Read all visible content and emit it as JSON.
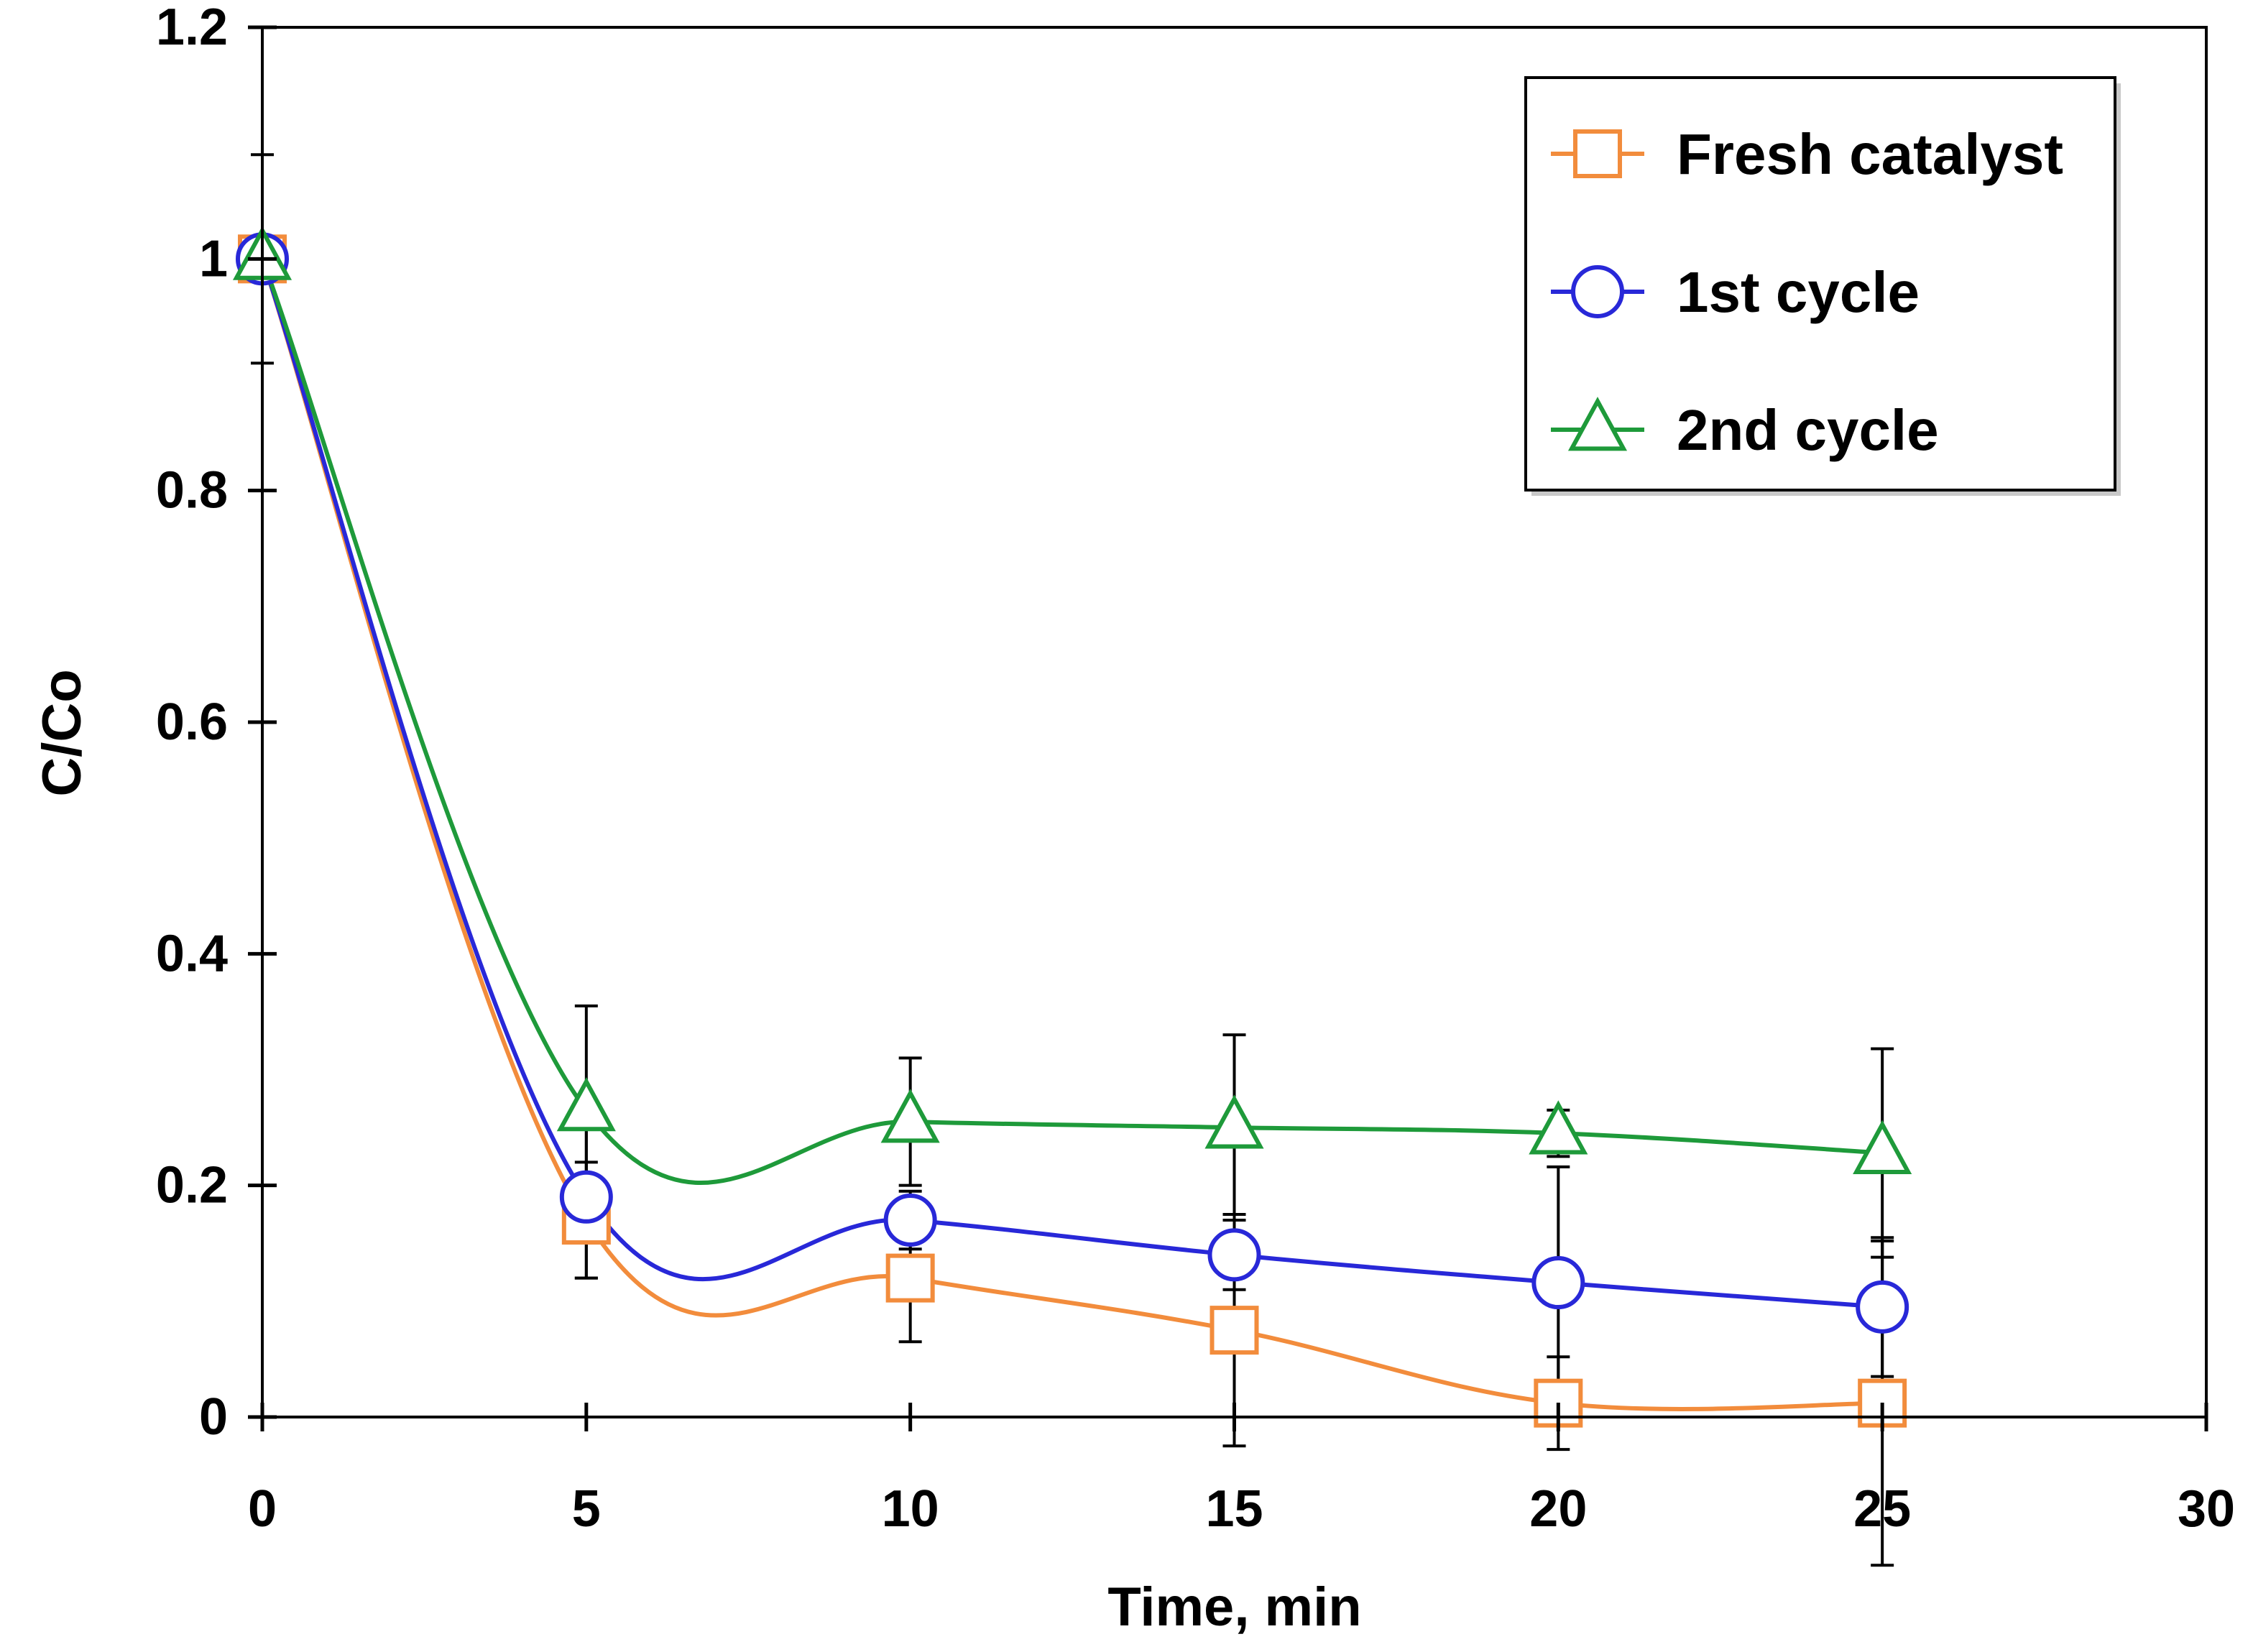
{
  "chart_data": {
    "type": "line",
    "title": "",
    "xlabel": "Time, min",
    "ylabel": "C/Co",
    "xlim": [
      0,
      30
    ],
    "ylim": [
      0,
      1.2
    ],
    "xticks": [
      0,
      5,
      10,
      15,
      20,
      25,
      30
    ],
    "yticks": [
      0,
      0.2,
      0.4,
      0.6,
      0.8,
      1,
      1.2
    ],
    "x_tick_labels": [
      "0",
      "5",
      "10",
      "15",
      "20",
      "25",
      "30"
    ],
    "y_tick_labels": [
      "0",
      "0.2",
      "0.4",
      "0.6",
      "0.8",
      "1",
      "1.2"
    ],
    "grid": false,
    "legend_position": "top-right",
    "x": [
      0,
      5,
      10,
      15,
      20,
      25
    ],
    "series": [
      {
        "name": "Fresh catalyst",
        "color": "#F28C3C",
        "marker": "square",
        "values": [
          1.0,
          0.17,
          0.12,
          0.075,
          0.012,
          0.012
        ],
        "error": [
          0.0,
          0.05,
          0.055,
          0.1,
          0.04,
          0.14
        ]
      },
      {
        "name": "1st cycle",
        "color": "#2828D8",
        "marker": "circle",
        "values": [
          1.0,
          0.19,
          0.17,
          0.14,
          0.116,
          0.095
        ],
        "error": [
          0.09,
          0.07,
          0.025,
          0.03,
          0.1,
          0.06
        ]
      },
      {
        "name": "2nd cycle",
        "color": "#1E9A3A",
        "marker": "triangle",
        "values": [
          1.0,
          0.265,
          0.255,
          0.25,
          0.245,
          0.228
        ],
        "error": [
          0.0,
          0.09,
          0.055,
          0.08,
          0.02,
          0.09
        ]
      }
    ]
  }
}
